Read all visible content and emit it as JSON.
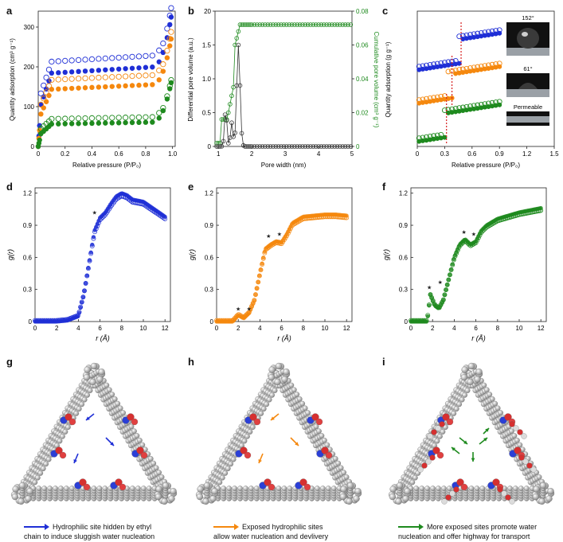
{
  "panels": {
    "a": "a",
    "b": "b",
    "c": "c",
    "d": "d",
    "e": "e",
    "f": "f",
    "g": "g",
    "h": "h",
    "i": "i"
  },
  "colors": {
    "blue": "#1f2fd6",
    "orange": "#f5880e",
    "green": "#1e8a1e",
    "red": "#d62020"
  },
  "chart_a": {
    "ylabel": "Quantity adsorption (cm³ g⁻¹)",
    "xlabel": "Relative pressure (P/P₀)",
    "yticks": [
      "0",
      "100",
      "200",
      "300"
    ],
    "xticks": [
      "0",
      "0.2",
      "0.4",
      "0.6",
      "0.8",
      "1.0"
    ]
  },
  "chart_b": {
    "ylabel_left": "Differential pore volume (a.u.)",
    "ylabel_right": "Cumulative pore volume (cm³ g⁻¹)",
    "xlabel": "Pore width (nm)",
    "yticks_left": [
      "0",
      "0.5",
      "1.0",
      "1.5",
      "20"
    ],
    "yticks_right": [
      "0",
      "0.02",
      "0.04",
      "0.06",
      "0.08"
    ],
    "xticks": [
      "1",
      "2",
      "3",
      "4",
      "5"
    ]
  },
  "chart_c": {
    "ylabel": "Quantity adsorption (g g⁻¹)",
    "xlabel": "Relative pressure (P/P₀)",
    "xticks": [
      "0",
      "0.3",
      "0.6",
      "0.9",
      "1.2",
      "1.5"
    ],
    "angle1": "152°",
    "angle2": "61°",
    "angle3": "Permeable"
  },
  "chart_d": {
    "ylabel": "g(r)",
    "xlabel": "r (Å)",
    "yticks": [
      "0",
      "0.3",
      "0.6",
      "0.9",
      "1.2"
    ],
    "xticks": [
      "0",
      "2",
      "4",
      "6",
      "8",
      "10",
      "12"
    ]
  },
  "chart_e": {
    "ylabel": "g(r)",
    "xlabel": "r (Å)",
    "yticks": [
      "0",
      "0.3",
      "0.6",
      "0.9",
      "1.2"
    ],
    "xticks": [
      "0",
      "2",
      "4",
      "6",
      "8",
      "10",
      "12"
    ]
  },
  "chart_f": {
    "ylabel": "g(r)",
    "xlabel": "r (Å)",
    "yticks": [
      "0",
      "0.3",
      "0.6",
      "0.9",
      "1.2"
    ],
    "xticks": [
      "0",
      "2",
      "4",
      "6",
      "8",
      "10",
      "12"
    ]
  },
  "legends": {
    "g_line1": "Hydrophilic site hidden by ethyl",
    "g_line2": "chain to induce sluggish water nucleation",
    "h_line1": "Exposed hydrophilic sites",
    "h_line2": "allow water nucleation and devlivery",
    "i_line1": "More exposed sites promote water",
    "i_line2": "nucleation and offer highway for transport"
  },
  "chart_data": [
    {
      "type": "scatter",
      "title": "a",
      "xlabel": "Relative pressure (P/P0)",
      "ylabel": "Quantity adsorption (cm3 g-1)",
      "xlim": [
        0,
        1.02
      ],
      "ylim": [
        0,
        340
      ],
      "series": [
        {
          "name": "blue",
          "color": "#1f2fd6",
          "plateau": 190,
          "end": 325
        },
        {
          "name": "orange",
          "color": "#f5880e",
          "plateau": 148,
          "end": 270
        },
        {
          "name": "green",
          "color": "#1e8a1e",
          "plateau": 58,
          "end": 160
        }
      ]
    },
    {
      "type": "line",
      "title": "b",
      "xlabel": "Pore width (nm)",
      "xlim": [
        0.9,
        5
      ],
      "ylim_left": [
        0,
        20
      ],
      "ylim_right": [
        0,
        0.08
      ],
      "differential_peaks": [
        {
          "x": 1.2,
          "y": 0.55
        },
        {
          "x": 1.55,
          "y": 1.5
        }
      ],
      "cumulative_plateau": 0.072
    },
    {
      "type": "scatter",
      "title": "c",
      "xlabel": "Relative pressure (P/P0)",
      "ylabel": "Quantity adsorption (g g-1)",
      "xlim": [
        0,
        1.5
      ],
      "steps": [
        {
          "color": "#1f2fd6",
          "x": 0.48
        },
        {
          "color": "#f5880e",
          "x": 0.38
        },
        {
          "color": "#1e8a1e",
          "x": 0.32
        }
      ]
    },
    {
      "type": "scatter",
      "title": "d",
      "xlabel": "r (A)",
      "ylabel": "g(r)",
      "xlim": [
        0,
        12.5
      ],
      "ylim": [
        0,
        1.25
      ],
      "color": "#1f2fd6",
      "x": [
        0,
        2,
        3,
        4,
        4.5,
        5,
        5.5,
        6,
        6.5,
        7,
        7.5,
        8,
        8.5,
        9,
        10,
        11,
        12
      ],
      "y": [
        0,
        0,
        0.01,
        0.05,
        0.25,
        0.55,
        0.85,
        0.97,
        1.02,
        1.1,
        1.17,
        1.2,
        1.18,
        1.14,
        1.12,
        1.05,
        0.98
      ]
    },
    {
      "type": "scatter",
      "title": "e",
      "xlabel": "r (A)",
      "ylabel": "g(r)",
      "xlim": [
        0,
        12.5
      ],
      "ylim": [
        0,
        1.25
      ],
      "color": "#f5880e",
      "x": [
        0,
        1.5,
        2,
        2.5,
        3,
        3.5,
        4,
        4.5,
        5,
        5.5,
        6,
        6.5,
        7,
        8,
        9,
        10,
        11,
        12
      ],
      "y": [
        0,
        0,
        0.06,
        0.03,
        0.08,
        0.2,
        0.45,
        0.68,
        0.72,
        0.75,
        0.74,
        0.82,
        0.92,
        0.98,
        0.99,
        1.0,
        1.0,
        0.99
      ]
    },
    {
      "type": "scatter",
      "title": "f",
      "xlabel": "r (A)",
      "ylabel": "g(r)",
      "xlim": [
        0,
        12.5
      ],
      "ylim": [
        0,
        1.25
      ],
      "color": "#1e8a1e",
      "x": [
        0,
        1.5,
        1.8,
        2.2,
        2.6,
        3,
        3.5,
        4,
        4.5,
        5,
        5.5,
        6,
        6.5,
        7,
        8,
        9,
        10,
        11,
        12
      ],
      "y": [
        0,
        0,
        0.25,
        0.15,
        0.12,
        0.2,
        0.4,
        0.6,
        0.72,
        0.77,
        0.72,
        0.75,
        0.85,
        0.9,
        0.96,
        0.99,
        1.02,
        1.04,
        1.06
      ]
    }
  ]
}
